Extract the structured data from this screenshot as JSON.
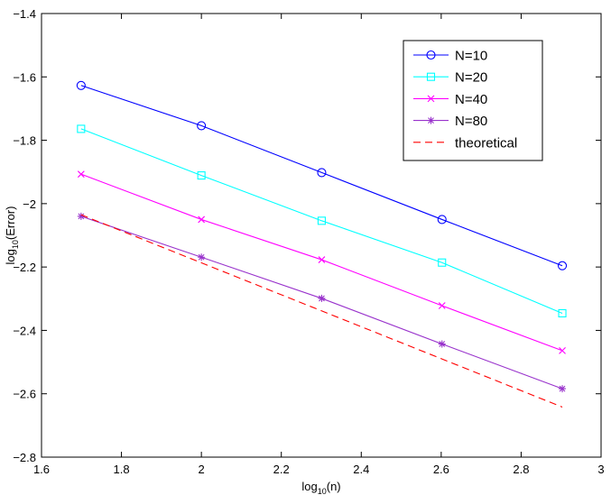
{
  "chart_data": {
    "type": "line",
    "title": "",
    "xlabel": {
      "base": "log",
      "sub": "10",
      "rest": "(n)"
    },
    "ylabel": {
      "base": "log",
      "sub": "10",
      "rest": "(Error)"
    },
    "xlim": [
      1.6,
      3.0
    ],
    "ylim": [
      -2.8,
      -1.4
    ],
    "xticks": [
      1.6,
      1.8,
      2.0,
      2.2,
      2.4,
      2.6,
      2.8,
      3.0
    ],
    "xtick_labels": [
      "1.6",
      "1.8",
      "2",
      "2.2",
      "2.4",
      "2.6",
      "2.8",
      "3"
    ],
    "yticks": [
      -2.8,
      -2.6,
      -2.4,
      -2.2,
      -2.0,
      -1.8,
      -1.6,
      -1.4
    ],
    "ytick_labels": [
      "−2.8",
      "−2.6",
      "−2.4",
      "−2.2",
      "−2",
      "−1.8",
      "−1.6",
      "−1.4"
    ],
    "grid": false,
    "legend_position": "top-right",
    "x": [
      1.699,
      2.0,
      2.301,
      2.602,
      2.903
    ],
    "series": [
      {
        "name": "N=10",
        "color": "#0000ff",
        "marker": "circle",
        "dash": "solid",
        "values": [
          -1.627,
          -1.754,
          -1.902,
          -2.05,
          -2.196
        ]
      },
      {
        "name": "N=20",
        "color": "#00ffff",
        "marker": "square",
        "dash": "solid",
        "values": [
          -1.764,
          -1.911,
          -2.054,
          -2.186,
          -2.346
        ]
      },
      {
        "name": "N=40",
        "color": "#ff00ff",
        "marker": "x",
        "dash": "solid",
        "values": [
          -1.907,
          -2.05,
          -2.177,
          -2.322,
          -2.464
        ]
      },
      {
        "name": "N=80",
        "color": "#9933cc",
        "marker": "star",
        "dash": "solid",
        "values": [
          -2.04,
          -2.169,
          -2.299,
          -2.443,
          -2.584
        ]
      },
      {
        "name": "theoretical",
        "color": "#ff0000",
        "marker": "none",
        "dash": "dashed",
        "points": [
          [
            1.699,
            -2.035
          ],
          [
            2.903,
            -2.642
          ]
        ]
      }
    ]
  }
}
